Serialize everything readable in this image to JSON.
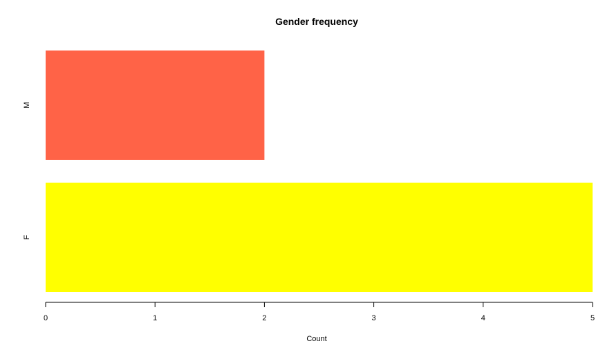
{
  "chart_data": {
    "type": "bar",
    "orientation": "horizontal",
    "title": "Gender frequency",
    "xlabel": "Count",
    "ylabel": "",
    "categories": [
      "F",
      "M"
    ],
    "values": [
      5,
      2
    ],
    "colors": [
      "#ffff00",
      "#ff6347"
    ],
    "xlim": [
      0,
      5
    ],
    "xticks": [
      "0",
      "1",
      "2",
      "3",
      "4",
      "5"
    ],
    "grid": false,
    "legend": "none"
  }
}
